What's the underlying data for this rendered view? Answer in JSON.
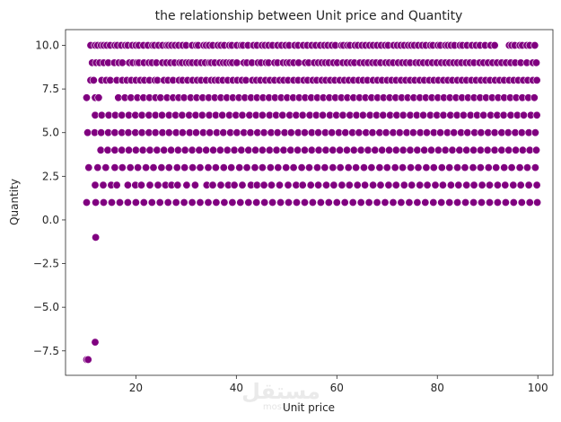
{
  "chart_data": {
    "type": "scatter",
    "title": "the relationship between Unit price and Quantity",
    "xlabel": "Unit price",
    "ylabel": "Quantity",
    "xlim": [
      6,
      103
    ],
    "ylim": [
      -8.9,
      10.9
    ],
    "x_ticks": [
      20,
      40,
      60,
      80,
      100
    ],
    "x_tick_labels": [
      "20",
      "40",
      "60",
      "80",
      "100"
    ],
    "y_ticks": [
      -7.5,
      -5.0,
      -2.5,
      0.0,
      2.5,
      5.0,
      7.5,
      10.0
    ],
    "y_tick_labels": [
      "−7.5",
      "−5.0",
      "−2.5",
      "0.0",
      "2.5",
      "5.0",
      "7.5",
      "10.0"
    ],
    "grid": false,
    "legend": "none",
    "point_color": "#800080",
    "point_edge_color": "#ffffff",
    "rows": [
      {
        "y": 10,
        "x": [
          11.0,
          11.9,
          12.4,
          13.1,
          13.6,
          14.2,
          14.9,
          15.8,
          16.3,
          17.1,
          17.9,
          18.4,
          19.3,
          20.0,
          20.6,
          21.5,
          22.4,
          23.3,
          23.7,
          24.5,
          25.3,
          26.1,
          26.5,
          27.1,
          27.8,
          28.5,
          29.3,
          30.0,
          31.2,
          32.0,
          32.4,
          33.5,
          34.0,
          34.6,
          35.3,
          36.3,
          36.9,
          37.6,
          38.6,
          39.1,
          40.1,
          40.9,
          41.3,
          42.3,
          43.4,
          44.1,
          45.1,
          45.7,
          46.4,
          47.2,
          48.2,
          49.0,
          49.8,
          50.5,
          51.6,
          52.3,
          53.3,
          54.1,
          55.0,
          55.8,
          56.7,
          57.5,
          58.2,
          59.0,
          59.7,
          60.9,
          61.3,
          62.1,
          62.6,
          63.6,
          64.2,
          65.0,
          65.7,
          66.5,
          67.2,
          68.0,
          68.8,
          69.6,
          70.2,
          71.3,
          72.0,
          72.7,
          73.4,
          74.2,
          74.8,
          75.4,
          76.2,
          77.0,
          77.7,
          78.6,
          79.1,
          80.1,
          80.6,
          81.6,
          82.1,
          82.7,
          83.4,
          84.5,
          85.0,
          85.9,
          86.9,
          87.7,
          88.5,
          89.5,
          90.6,
          91.4,
          94.3,
          94.8,
          95.4,
          96.4,
          96.9,
          97.8,
          98.4,
          99.4
        ]
      },
      {
        "y": 9,
        "x": [
          11.3,
          12.1,
          12.8,
          13.6,
          14.5,
          15.7,
          16.6,
          17.3,
          18.7,
          19.4,
          20.2,
          20.6,
          21.6,
          22.6,
          23.2,
          24.1,
          25.3,
          26.1,
          26.9,
          27.7,
          28.7,
          29.2,
          30.0,
          30.6,
          31.2,
          32.1,
          33.0,
          33.8,
          34.6,
          35.0,
          35.7,
          36.7,
          37.4,
          38.0,
          38.7,
          39.2,
          40.1,
          41.5,
          42.1,
          43.1,
          44.3,
          44.9,
          45.9,
          46.4,
          47.6,
          48.2,
          49.3,
          50.0,
          50.6,
          51.4,
          52.4,
          53.7,
          54.4,
          55.5,
          56.3,
          57.0,
          57.7,
          58.4,
          59.3,
          60.1,
          61.2,
          62.0,
          62.8,
          63.5,
          64.6,
          65.4,
          66.2,
          67.1,
          67.8,
          68.7,
          69.7,
          70.4,
          71.2,
          72.2,
          73.0,
          73.8,
          74.6,
          75.7,
          76.4,
          77.2,
          78.1,
          79.0,
          79.9,
          80.8,
          81.6,
          82.4,
          83.2,
          84.0,
          84.8,
          85.7,
          86.5,
          87.3,
          88.4,
          89.2,
          90.1,
          91.0,
          91.9,
          92.8,
          93.7,
          94.6,
          95.5,
          96.6,
          97.8,
          99.0,
          99.7
        ]
      },
      {
        "y": 8,
        "x": [
          11.0,
          11.6,
          13.2,
          14.1,
          14.9,
          16.2,
          17.3,
          18.2,
          19.1,
          20.0,
          20.9,
          21.7,
          22.7,
          23.8,
          24.3,
          25.6,
          26.4,
          27.4,
          28.6,
          29.3,
          30.3,
          31.3,
          32.2,
          33.0,
          34.0,
          35.0,
          35.7,
          36.4,
          37.3,
          38.3,
          39.3,
          40.2,
          41.1,
          41.9,
          43.2,
          44.0,
          44.8,
          45.8,
          46.7,
          47.6,
          48.6,
          49.4,
          50.3,
          51.4,
          52.3,
          53.4,
          54.2,
          55.2,
          56.0,
          57.0,
          57.8,
          58.7,
          59.6,
          60.6,
          61.5,
          62.4,
          63.3,
          64.3,
          65.2,
          66.1,
          67.2,
          68.1,
          69.0,
          70.0,
          70.9,
          71.8,
          72.8,
          73.7,
          74.6,
          75.5,
          76.5,
          77.4,
          78.4,
          79.3,
          80.2,
          81.2,
          82.1,
          83.0,
          84.0,
          84.9,
          85.8,
          86.8,
          87.7,
          88.7,
          89.6,
          90.5,
          91.5,
          92.4,
          93.3,
          94.3,
          95.2,
          96.1,
          97.1,
          98.0,
          99.0,
          99.8
        ]
      },
      {
        "y": 7,
        "x": [
          10.2,
          11.9,
          12.6,
          16.5,
          17.8,
          19.0,
          20.3,
          21.5,
          22.7,
          23.9,
          24.9,
          26.2,
          27.4,
          28.5,
          29.6,
          30.9,
          32.1,
          33.3,
          34.5,
          35.7,
          36.9,
          38.1,
          39.3,
          40.5,
          41.7,
          42.9,
          44.1,
          45.3,
          46.5,
          47.7,
          48.9,
          50.1,
          51.3,
          52.5,
          53.7,
          54.9,
          56.1,
          57.3,
          58.5,
          59.7,
          60.9,
          62.1,
          63.3,
          64.5,
          65.7,
          66.9,
          68.1,
          69.3,
          70.5,
          71.7,
          72.9,
          74.1,
          75.3,
          76.5,
          77.7,
          78.9,
          80.1,
          81.3,
          82.5,
          83.7,
          84.9,
          86.1,
          87.3,
          88.5,
          89.7,
          90.9,
          92.1,
          93.3,
          94.5,
          95.7,
          96.9,
          98.1,
          99.3
        ]
      },
      {
        "y": 6,
        "x": [
          11.9,
          13.2,
          14.6,
          15.9,
          17.2,
          18.6,
          19.9,
          21.2,
          22.6,
          23.9,
          25.2,
          26.6,
          27.9,
          29.2,
          30.6,
          31.9,
          33.2,
          34.6,
          35.9,
          37.2,
          38.6,
          39.9,
          41.2,
          42.6,
          43.9,
          45.2,
          46.6,
          47.9,
          49.2,
          50.6,
          51.9,
          53.2,
          54.6,
          55.9,
          57.2,
          58.6,
          59.9,
          61.2,
          62.6,
          63.9,
          65.2,
          66.6,
          67.9,
          69.2,
          70.6,
          71.9,
          73.2,
          74.6,
          75.9,
          77.2,
          78.6,
          79.9,
          81.2,
          82.6,
          83.9,
          85.2,
          86.6,
          87.9,
          89.2,
          90.6,
          91.9,
          93.2,
          94.6,
          95.9,
          97.2,
          98.6,
          99.8
        ]
      },
      {
        "y": 5,
        "x": [
          10.4,
          11.8,
          13.1,
          14.5,
          15.8,
          17.2,
          18.5,
          19.9,
          21.2,
          22.6,
          23.9,
          25.3,
          26.6,
          28.0,
          29.3,
          30.7,
          32.0,
          33.4,
          34.7,
          36.1,
          37.4,
          38.8,
          40.1,
          41.5,
          42.8,
          44.2,
          45.5,
          46.9,
          48.2,
          49.6,
          50.9,
          52.3,
          53.6,
          55.0,
          56.3,
          57.7,
          59.0,
          60.4,
          61.7,
          63.1,
          64.4,
          65.8,
          67.1,
          68.5,
          69.8,
          71.2,
          72.5,
          73.9,
          75.2,
          76.6,
          77.9,
          79.3,
          80.6,
          82.0,
          83.3,
          84.7,
          86.0,
          87.4,
          88.7,
          90.1,
          91.4,
          92.8,
          94.1,
          95.5,
          96.8,
          98.2,
          99.5
        ]
      },
      {
        "y": 4,
        "x": [
          13.0,
          14.4,
          15.8,
          17.2,
          18.6,
          20.0,
          21.4,
          22.8,
          24.2,
          25.6,
          27.0,
          28.4,
          29.8,
          31.2,
          32.6,
          34.0,
          35.4,
          36.8,
          38.2,
          39.6,
          41.0,
          42.4,
          43.8,
          45.2,
          46.6,
          48.0,
          49.4,
          50.8,
          52.2,
          53.6,
          55.0,
          56.4,
          57.8,
          59.2,
          60.6,
          62.0,
          63.4,
          64.8,
          66.2,
          67.6,
          69.0,
          70.4,
          71.8,
          73.2,
          74.6,
          76.0,
          77.4,
          78.8,
          80.2,
          81.6,
          83.0,
          84.4,
          85.8,
          87.2,
          88.6,
          90.0,
          91.4,
          92.8,
          94.2,
          95.6,
          97.0,
          98.4,
          99.7
        ]
      },
      {
        "y": 3,
        "x": [
          10.6,
          12.4,
          14.0,
          15.8,
          17.3,
          18.9,
          20.4,
          22.0,
          23.5,
          25.1,
          26.6,
          28.2,
          29.7,
          31.3,
          32.8,
          34.4,
          35.9,
          37.5,
          39.0,
          40.6,
          42.1,
          43.7,
          45.2,
          46.8,
          48.3,
          49.9,
          51.4,
          53.0,
          54.5,
          56.1,
          57.6,
          59.2,
          60.7,
          62.3,
          63.8,
          65.4,
          66.9,
          68.5,
          70.0,
          71.6,
          73.1,
          74.7,
          76.2,
          77.8,
          79.3,
          80.9,
          82.4,
          84.0,
          85.5,
          87.1,
          88.6,
          90.2,
          91.7,
          93.3,
          94.8,
          96.4,
          97.9,
          99.5
        ]
      },
      {
        "y": 2,
        "x": [
          11.9,
          13.5,
          15.1,
          16.2,
          18.4,
          19.9,
          21.1,
          22.8,
          24.4,
          25.9,
          27.1,
          28.3,
          30.1,
          31.8,
          34.1,
          35.3,
          36.9,
          38.4,
          39.6,
          41.2,
          42.9,
          44.1,
          45.5,
          47.0,
          48.6,
          50.3,
          51.9,
          53.2,
          54.8,
          56.3,
          57.9,
          59.4,
          61.0,
          62.5,
          64.1,
          65.6,
          67.2,
          68.7,
          70.3,
          71.8,
          73.4,
          74.9,
          76.5,
          78.0,
          79.6,
          81.1,
          82.7,
          84.2,
          85.8,
          87.3,
          88.9,
          90.4,
          92.0,
          93.5,
          95.1,
          96.6,
          98.2,
          99.8
        ]
      },
      {
        "y": 1,
        "x": [
          10.2,
          12.0,
          13.6,
          15.2,
          16.8,
          18.4,
          20.0,
          21.6,
          23.2,
          24.8,
          26.4,
          28.0,
          29.6,
          31.2,
          32.8,
          34.4,
          36.0,
          37.6,
          39.2,
          40.8,
          42.4,
          44.0,
          45.6,
          47.2,
          48.8,
          50.4,
          52.0,
          53.6,
          55.2,
          56.8,
          58.4,
          60.0,
          61.6,
          63.2,
          64.8,
          66.4,
          68.0,
          69.6,
          71.2,
          72.8,
          74.4,
          76.0,
          77.6,
          79.2,
          80.8,
          82.4,
          84.0,
          85.6,
          87.2,
          88.8,
          90.4,
          92.0,
          93.6,
          95.2,
          96.8,
          98.4,
          99.9
        ]
      }
    ],
    "outliers": [
      {
        "x": 12.0,
        "y": -1
      },
      {
        "x": 11.9,
        "y": -7
      },
      {
        "x": 10.2,
        "y": -8
      },
      {
        "x": 10.5,
        "y": -8
      }
    ]
  },
  "watermark": {
    "logo_text": "مستقل",
    "sub_text": "mostaql"
  }
}
